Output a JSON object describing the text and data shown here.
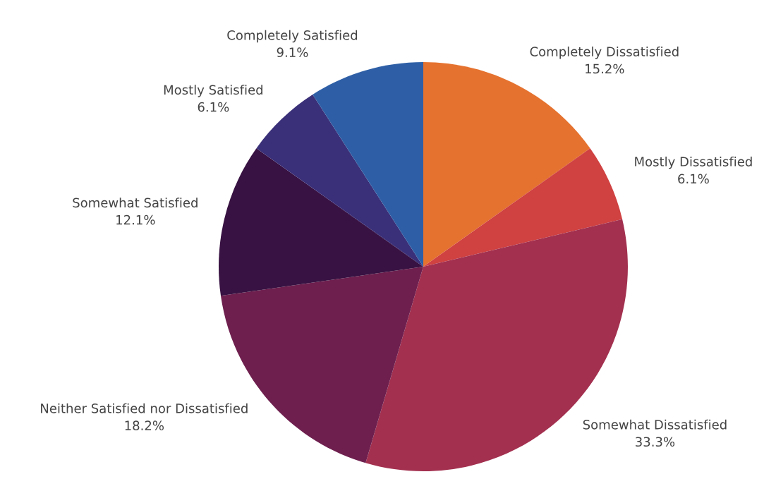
{
  "chart_data": {
    "type": "pie",
    "categories": [
      "Completely Dissatisfied",
      "Mostly Dissatisfied",
      "Somewhat Dissatisfied",
      "Neither Satisfied nor Dissatisfied",
      "Somewhat Satisfied",
      "Mostly Satisfied",
      "Completely Satisfied"
    ],
    "values": [
      15.2,
      6.1,
      33.3,
      18.2,
      12.1,
      6.1,
      9.1
    ],
    "value_labels": [
      "15.2%",
      "6.1%",
      "33.3%",
      "18.2%",
      "12.1%",
      "6.1%",
      "9.1%"
    ],
    "colors": [
      "#e5722f",
      "#d04141",
      "#a3304f",
      "#6e1f4e",
      "#381242",
      "#3a3079",
      "#2e5fa6"
    ]
  }
}
